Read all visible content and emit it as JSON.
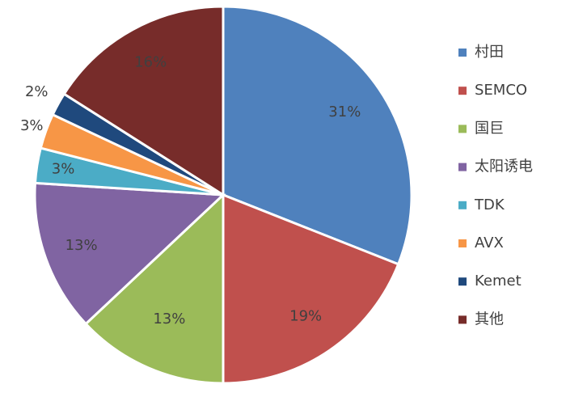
{
  "chart_data": {
    "type": "pie",
    "categories": [
      "村田",
      "SEMCO",
      "国巨",
      "太阳诱电",
      "TDK",
      "AVX",
      "Kemet",
      "其他"
    ],
    "values": [
      31,
      19,
      13,
      13,
      3,
      3,
      2,
      16
    ],
    "value_labels": [
      "31%",
      "19%",
      "13%",
      "13%",
      "3%",
      "3%",
      "2%",
      "16%"
    ],
    "colors": [
      "#4f81bd",
      "#c0504d",
      "#9bbb59",
      "#8064a2",
      "#4bacc6",
      "#f79646",
      "#1f497d",
      "#772c2a"
    ],
    "legend": "right"
  }
}
